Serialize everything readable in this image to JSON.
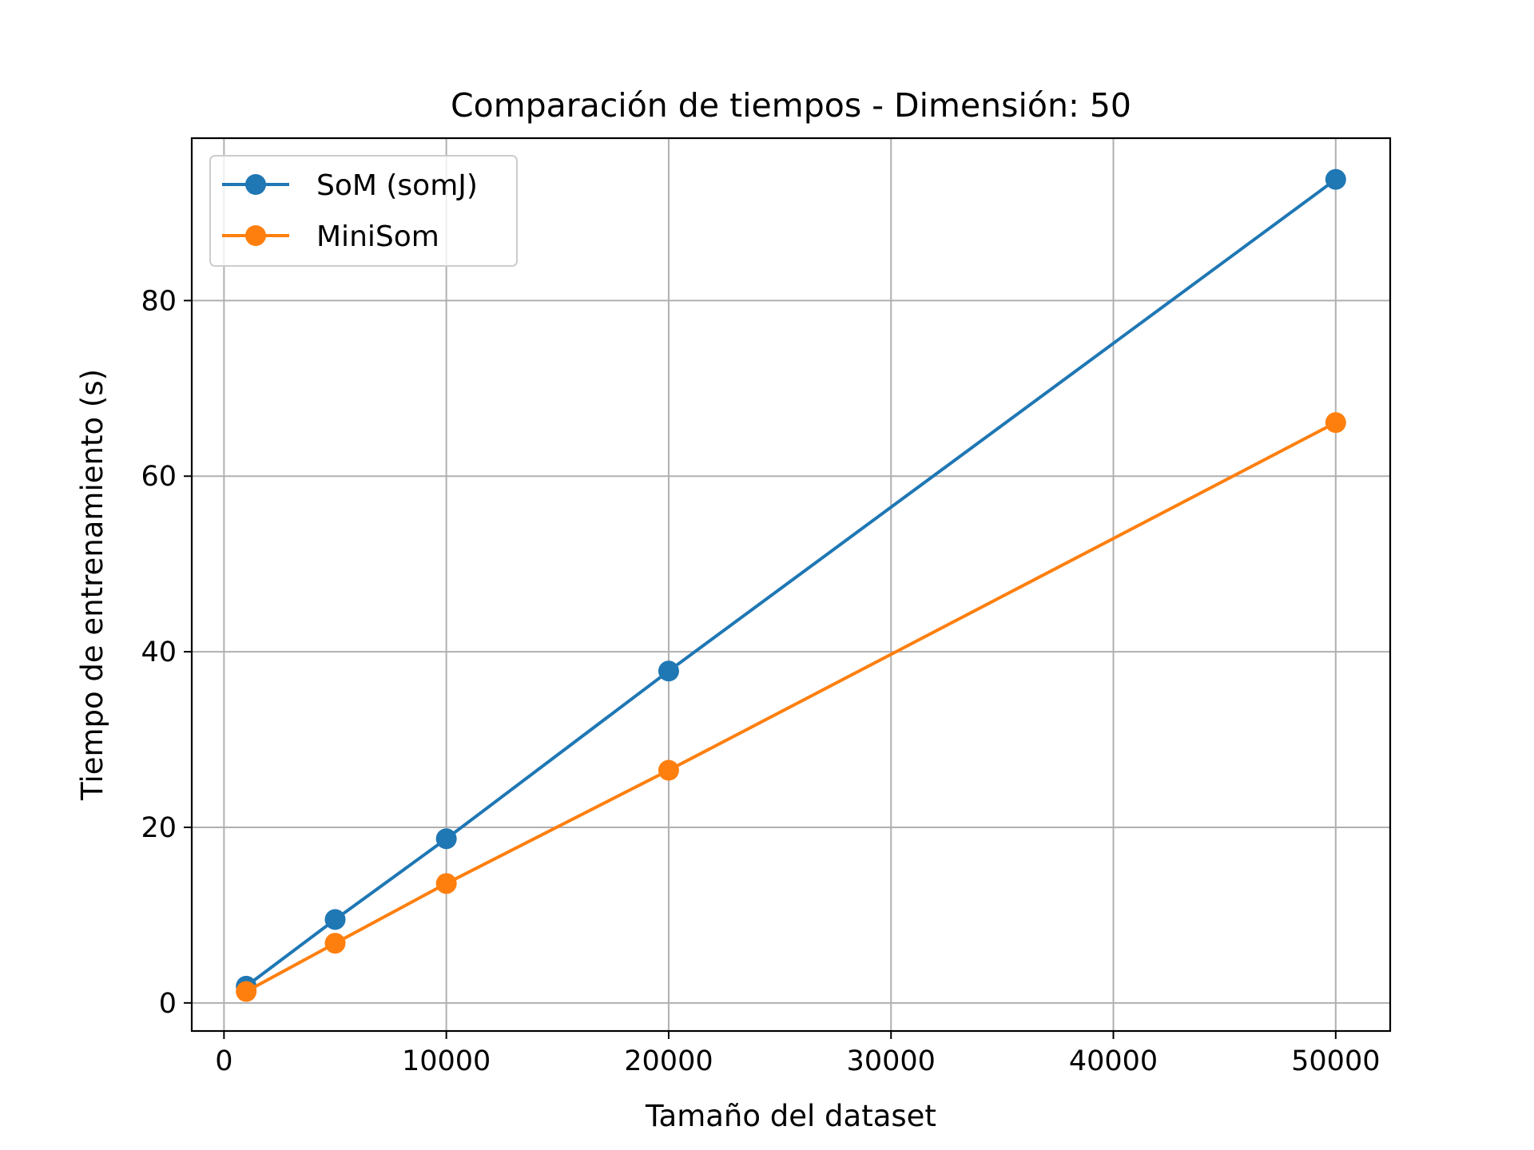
{
  "chart_data": {
    "type": "line",
    "title": "Comparación de tiempos - Dimensión: 50",
    "xlabel": "Tamaño del dataset",
    "ylabel": "Tiempo de entrenamiento (s)",
    "x": [
      1000,
      5000,
      10000,
      20000,
      50000
    ],
    "series": [
      {
        "name": "SoM (somJ)",
        "color": "#1f77b4",
        "values": [
          1.9,
          9.5,
          18.7,
          37.8,
          93.8
        ]
      },
      {
        "name": "MiniSom",
        "color": "#ff7f0e",
        "values": [
          1.3,
          6.8,
          13.6,
          26.5,
          66.1
        ]
      }
    ],
    "xlim": [
      -1450,
      52450
    ],
    "ylim": [
      -3.2,
      98.5
    ],
    "xticks": [
      0,
      10000,
      20000,
      30000,
      40000,
      50000
    ],
    "yticks": [
      0,
      20,
      40,
      60,
      80
    ],
    "grid": true,
    "legend_position": "upper left"
  }
}
